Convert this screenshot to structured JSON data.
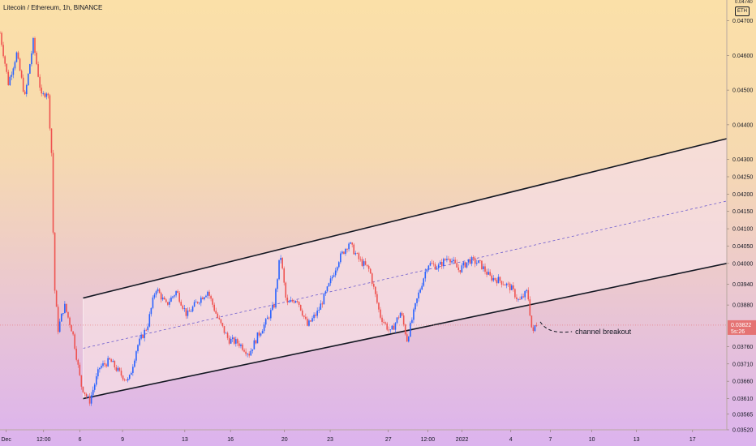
{
  "header": {
    "title": "Litecoin / Ethereum, 1h, BINANCE"
  },
  "currency_badge": "ETH",
  "top_tick_label": "0.04740",
  "colors": {
    "candle_up": "#2962ff",
    "candle_down": "#ef5350",
    "channel_fill": "#f5dde4",
    "channel_line": "#131722",
    "midline": "#6a5acd",
    "price_tag": "#e57373"
  },
  "chart_data": {
    "type": "candlestick",
    "symbol": "Litecoin / Ethereum",
    "interval": "1h",
    "exchange": "BINANCE",
    "ylim": [
      0.0352,
      0.0476
    ],
    "y_ticks": [
      "0.04700",
      "0.04600",
      "0.04500",
      "0.04400",
      "0.04300",
      "0.04250",
      "0.04200",
      "0.04150",
      "0.04100",
      "0.04050",
      "0.04000",
      "0.03940",
      "0.03880",
      "0.03822",
      "0.03760",
      "0.03710",
      "0.03660",
      "0.03610",
      "0.03565",
      "0.03520"
    ],
    "x_ticks": [
      "Dec",
      "12:00",
      "6",
      "9",
      "13",
      "16",
      "20",
      "23",
      "27",
      "12:00",
      "2022",
      "4",
      "7",
      "10",
      "13",
      "17"
    ],
    "current_price": {
      "label": "0.03822",
      "countdown": "5s:26"
    },
    "price_path": [
      [
        0.0,
        0.04665
      ],
      [
        0.8,
        0.0452
      ],
      [
        1.6,
        0.04605
      ],
      [
        2.4,
        0.0448
      ],
      [
        3.2,
        0.0464
      ],
      [
        4.0,
        0.0448
      ],
      [
        4.6,
        0.045
      ],
      [
        5.0,
        0.043
      ],
      [
        5.2,
        0.0395
      ],
      [
        5.6,
        0.0381
      ],
      [
        6.2,
        0.0388
      ],
      [
        7.0,
        0.038
      ],
      [
        7.8,
        0.0365
      ],
      [
        8.6,
        0.036
      ],
      [
        9.6,
        0.037
      ],
      [
        10.6,
        0.0372
      ],
      [
        11.6,
        0.0368
      ],
      [
        12.4,
        0.0366
      ],
      [
        13.2,
        0.0376
      ],
      [
        14.2,
        0.0382
      ],
      [
        15.0,
        0.0393
      ],
      [
        16.0,
        0.0388
      ],
      [
        17.0,
        0.0392
      ],
      [
        18.0,
        0.0385
      ],
      [
        19.0,
        0.0389
      ],
      [
        20.0,
        0.0392
      ],
      [
        21.0,
        0.0384
      ],
      [
        22.0,
        0.0378
      ],
      [
        23.0,
        0.0377
      ],
      [
        24.0,
        0.0374
      ],
      [
        24.8,
        0.0379
      ],
      [
        25.6,
        0.0383
      ],
      [
        26.4,
        0.0388
      ],
      [
        27.0,
        0.0403
      ],
      [
        27.6,
        0.0388
      ],
      [
        28.6,
        0.039
      ],
      [
        29.6,
        0.0382
      ],
      [
        30.6,
        0.0386
      ],
      [
        31.6,
        0.0393
      ],
      [
        32.6,
        0.0401
      ],
      [
        33.6,
        0.0406
      ],
      [
        34.6,
        0.0401
      ],
      [
        35.6,
        0.0398
      ],
      [
        36.6,
        0.0385
      ],
      [
        37.6,
        0.038
      ],
      [
        38.6,
        0.0386
      ],
      [
        39.2,
        0.0378
      ],
      [
        40.2,
        0.039
      ],
      [
        41.2,
        0.04
      ],
      [
        42.2,
        0.0399
      ],
      [
        43.2,
        0.0402
      ],
      [
        44.2,
        0.0398
      ],
      [
        45.2,
        0.0401
      ],
      [
        46.2,
        0.04
      ],
      [
        47.2,
        0.0396
      ],
      [
        48.2,
        0.0395
      ],
      [
        49.2,
        0.0393
      ],
      [
        50.0,
        0.0389
      ],
      [
        50.8,
        0.0392
      ],
      [
        51.3,
        0.0379
      ],
      [
        51.6,
        0.0383
      ],
      [
        51.8,
        0.03822
      ]
    ],
    "channel": {
      "upper": [
        [
          8.0,
          0.039
        ],
        [
          70.0,
          0.0436
        ]
      ],
      "lower": [
        [
          8.0,
          0.0361
        ],
        [
          70.0,
          0.04
        ]
      ],
      "midline": [
        [
          8.0,
          0.03755
        ],
        [
          70.0,
          0.0418
        ]
      ]
    },
    "annotations": [
      {
        "text": "channel breakout",
        "x": 55.4,
        "y": 0.03808
      }
    ]
  }
}
